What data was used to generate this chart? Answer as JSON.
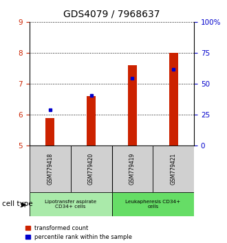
{
  "title": "GDS4079 / 7968637",
  "samples": [
    "GSM779418",
    "GSM779420",
    "GSM779419",
    "GSM779421"
  ],
  "red_values": [
    5.9,
    6.6,
    7.6,
    8.0
  ],
  "blue_values": [
    6.15,
    6.62,
    7.18,
    7.47
  ],
  "ylim": [
    5,
    9
  ],
  "ylim_right": [
    0,
    100
  ],
  "yticks_left": [
    5,
    6,
    7,
    8,
    9
  ],
  "yticks_right": [
    0,
    25,
    50,
    75,
    100
  ],
  "ytick_labels_right": [
    "0",
    "25",
    "50",
    "75",
    "100%"
  ],
  "bar_bottom": 5.0,
  "groups": [
    {
      "label": "Lipotransfer aspirate\nCD34+ cells",
      "color": "#aaeaaa",
      "start": 0,
      "end": 2
    },
    {
      "label": "Leukapheresis CD34+\ncells",
      "color": "#66dd66",
      "start": 2,
      "end": 4
    }
  ],
  "cell_type_label": "cell type",
  "legend_red": "transformed count",
  "legend_blue": "percentile rank within the sample",
  "red_color": "#cc2200",
  "blue_color": "#0000cc",
  "title_fontsize": 10,
  "tick_fontsize": 7.5,
  "label_fontsize": 6,
  "bar_width": 0.22
}
